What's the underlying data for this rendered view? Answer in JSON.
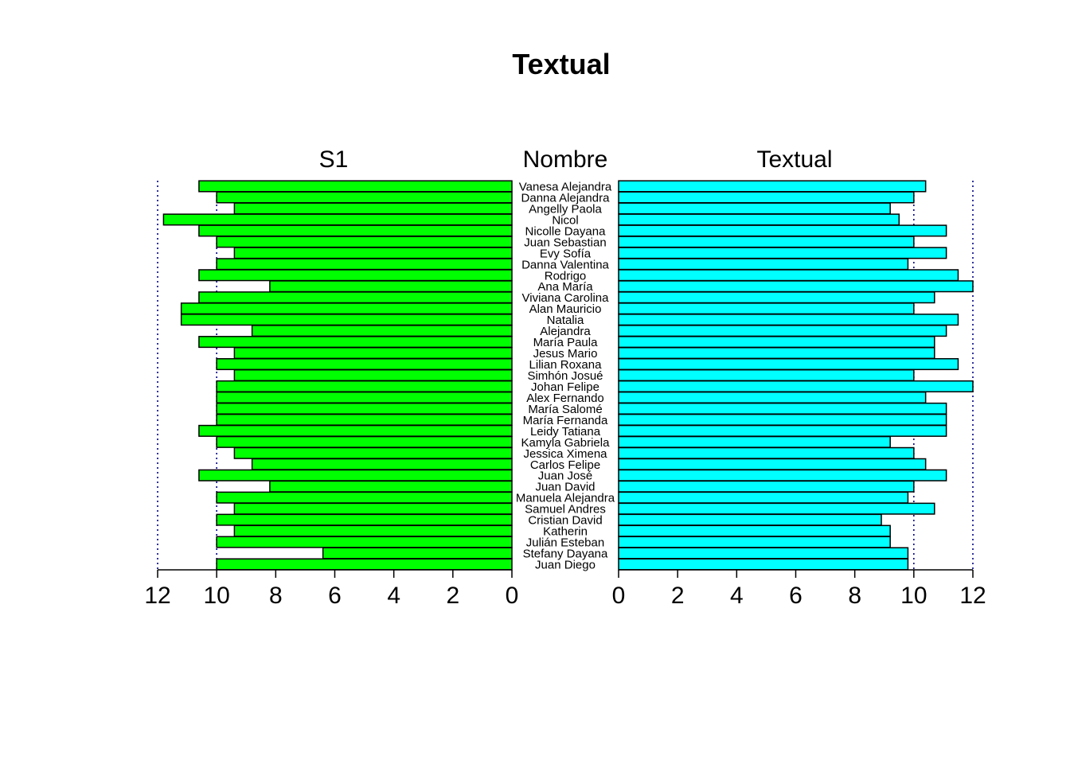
{
  "chart_data": {
    "type": "bar",
    "title": "Textual",
    "category_header": "Nombre",
    "categories": [
      "Vanesa Alejandra",
      "Danna Alejandra",
      "Angelly Paola",
      "Nicol",
      "Nicolle Dayana",
      "Juan Sebastian",
      "Evy Sofía",
      "Danna Valentina",
      "Rodrigo",
      "Ana María",
      "Viviana Carolina",
      "Alan Mauricio",
      "Natalia",
      "Alejandra",
      "María Paula",
      "Jesus Mario",
      "Lilian Roxana",
      "Simhón Josué",
      "Johan Felipe",
      "Alex Fernando",
      "María Salomé",
      "María Fernanda",
      "Leidy Tatiana",
      "Kamyla Gabriela",
      "Jessica Ximena",
      "Carlos Felipe",
      "Juan José",
      "Juan David",
      "Manuela Alejandra",
      "Samuel Andres",
      "Cristian David",
      "Katherin",
      "Julián Esteban",
      "Stefany Dayana",
      "Juan Diego"
    ],
    "series": [
      {
        "name": "S1",
        "side": "left",
        "color": "#00FF00",
        "values": [
          10.6,
          10.0,
          9.4,
          11.8,
          10.6,
          10.0,
          9.4,
          10.0,
          10.6,
          8.2,
          10.6,
          11.2,
          11.2,
          8.8,
          10.6,
          9.4,
          10.0,
          9.4,
          10.0,
          10.0,
          10.0,
          10.0,
          10.6,
          10.0,
          9.4,
          8.8,
          10.6,
          8.2,
          10.0,
          9.4,
          10.0,
          9.4,
          10.0,
          6.4,
          10.0
        ]
      },
      {
        "name": "Textual",
        "side": "right",
        "color": "#00FFFF",
        "values": [
          10.4,
          10.0,
          9.2,
          9.5,
          11.1,
          10.0,
          11.1,
          9.8,
          11.5,
          12.0,
          10.7,
          10.0,
          11.5,
          11.1,
          10.7,
          10.7,
          11.5,
          10.0,
          12.0,
          10.4,
          11.1,
          11.1,
          11.1,
          9.2,
          10.0,
          10.4,
          11.1,
          10.0,
          9.8,
          10.7,
          8.9,
          9.2,
          9.2,
          9.8,
          9.8
        ]
      }
    ],
    "xlim": [
      0,
      12
    ],
    "x_ticks": [
      "0",
      "2",
      "4",
      "6",
      "8",
      "10",
      "12"
    ],
    "reference_lines": [
      10,
      12
    ],
    "reference_line_color": "#00008B",
    "grid": false,
    "legend": "none"
  }
}
